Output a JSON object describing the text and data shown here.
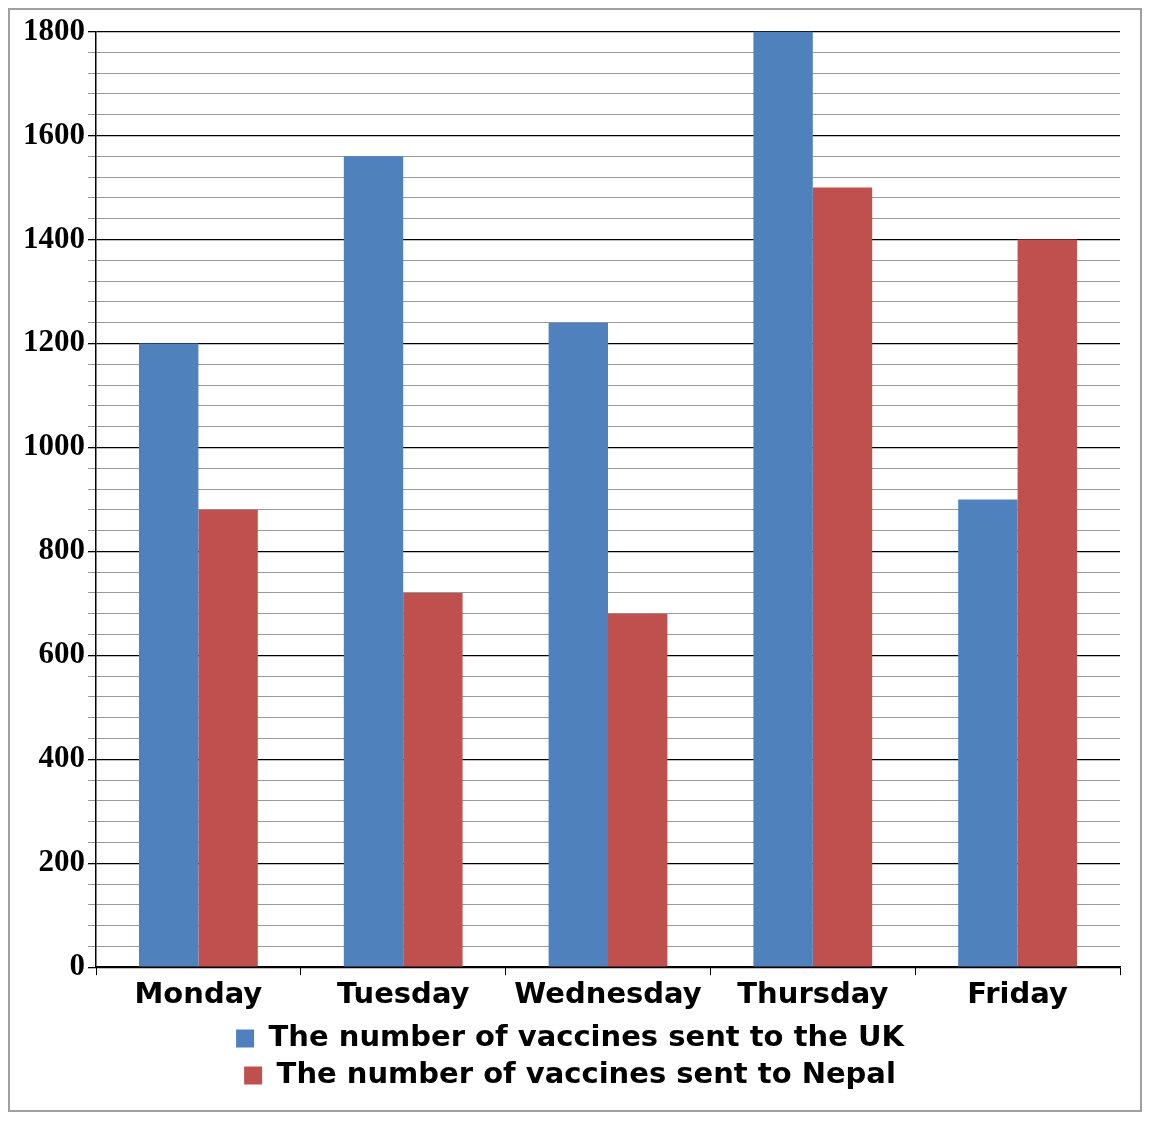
{
  "chart_data": {
    "type": "bar",
    "categories": [
      "Monday",
      "Tuesday",
      "Wednesday",
      "Thursday",
      "Friday"
    ],
    "series": [
      {
        "name": "The number of vaccines sent to the UK",
        "color": "#4f81bd",
        "values": [
          1200,
          1560,
          1240,
          1800,
          900
        ]
      },
      {
        "name": "The number of vaccines sent to Nepal",
        "color": "#c0504d",
        "values": [
          880,
          720,
          680,
          1500,
          1400
        ]
      }
    ],
    "ylim": [
      0,
      1800
    ],
    "yticks": [
      0,
      {
        "value": 40,
        "label": null
      },
      {
        "value": 80,
        "label": null
      },
      {
        "value": 120,
        "label": null
      },
      {
        "value": 160,
        "label": null
      },
      200,
      {
        "value": 240,
        "label": null
      },
      {
        "value": 280,
        "label": null
      },
      {
        "value": 320,
        "label": null
      },
      {
        "value": 360,
        "label": null
      },
      400,
      {
        "value": 440,
        "label": null
      },
      {
        "value": 480,
        "label": null
      },
      {
        "value": 520,
        "label": null
      },
      {
        "value": 560,
        "label": null
      },
      600,
      {
        "value": 640,
        "label": null
      },
      {
        "value": 680,
        "label": null
      },
      {
        "value": 720,
        "label": null
      },
      {
        "value": 760,
        "label": null
      },
      800,
      {
        "value": 840,
        "label": null
      },
      {
        "value": 880,
        "label": null
      },
      {
        "value": 920,
        "label": null
      },
      {
        "value": 960,
        "label": null
      },
      1000,
      {
        "value": 1040,
        "label": null
      },
      {
        "value": 1080,
        "label": null
      },
      {
        "value": 1120,
        "label": null
      },
      {
        "value": 1160,
        "label": null
      },
      1200,
      {
        "value": 1240,
        "label": null
      },
      {
        "value": 1280,
        "label": null
      },
      {
        "value": 1320,
        "label": null
      },
      {
        "value": 1360,
        "label": null
      },
      1400,
      {
        "value": 1440,
        "label": null
      },
      {
        "value": 1480,
        "label": null
      },
      {
        "value": 1520,
        "label": null
      },
      {
        "value": 1560,
        "label": null
      },
      1600,
      {
        "value": 1640,
        "label": null
      },
      {
        "value": 1680,
        "label": null
      },
      {
        "value": 1720,
        "label": null
      },
      {
        "value": 1760,
        "label": null
      },
      1800
    ],
    "grid": "y",
    "legend": "bottom"
  }
}
